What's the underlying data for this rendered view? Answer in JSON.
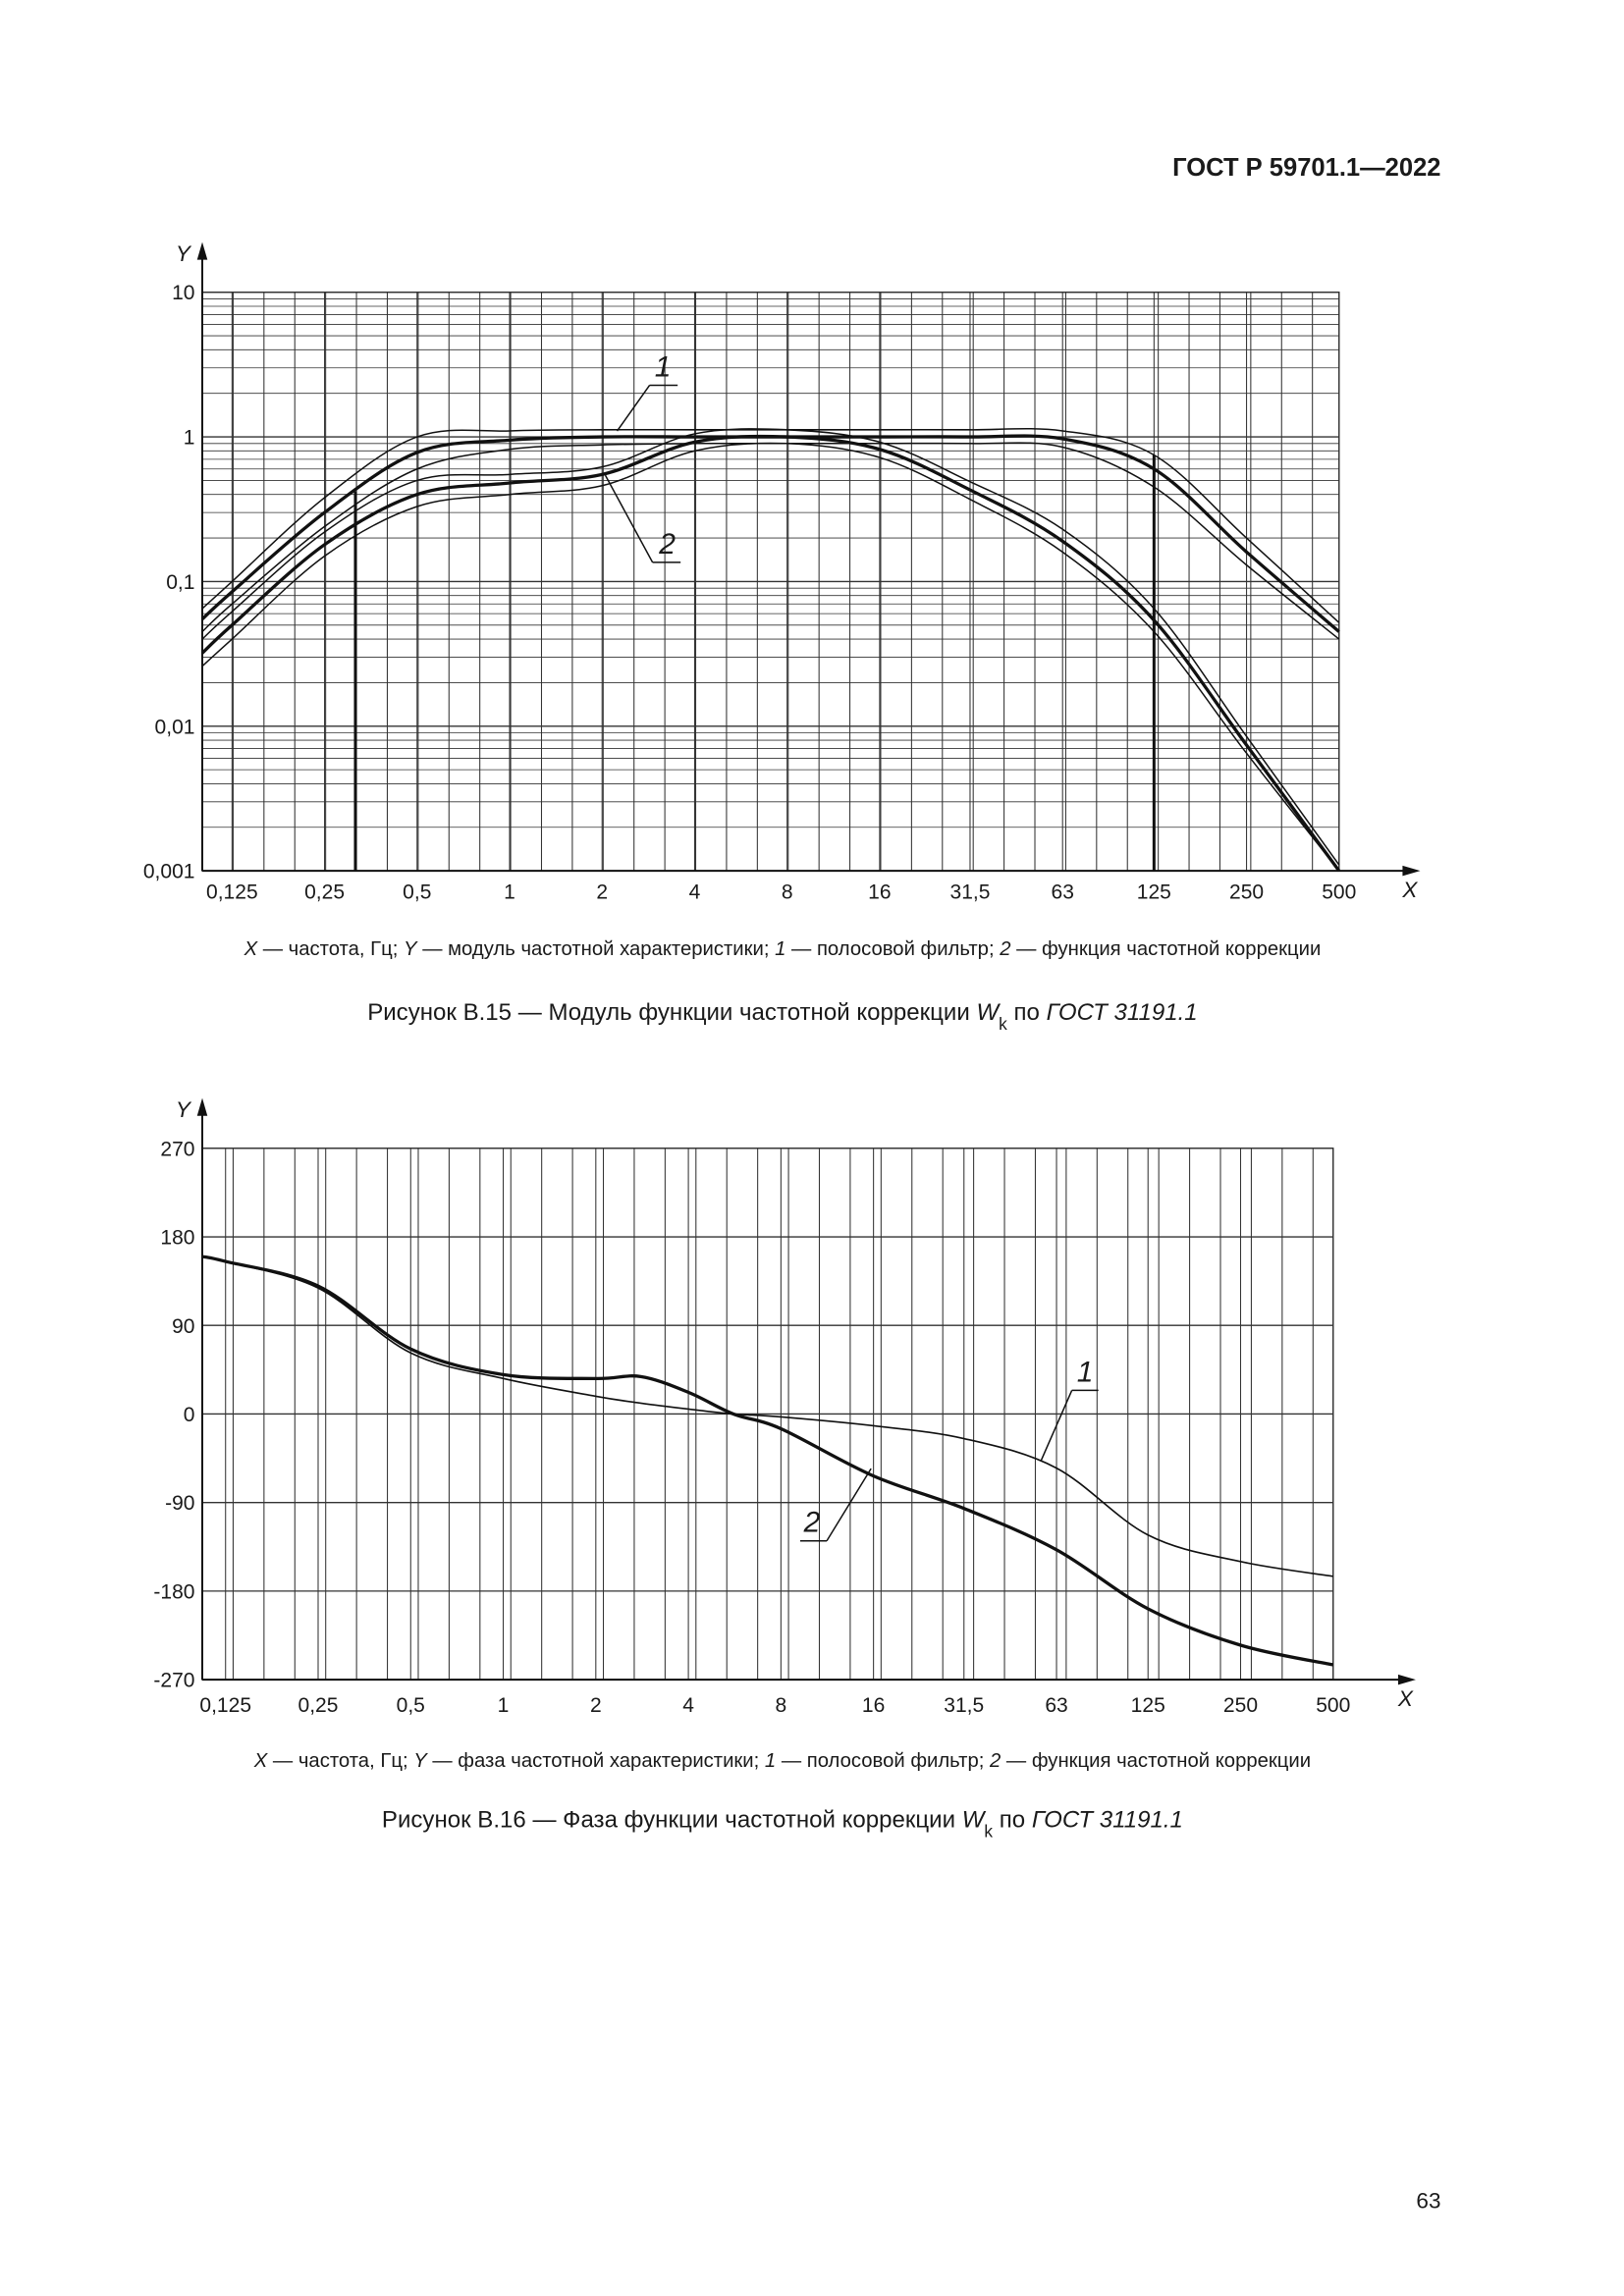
{
  "header": "ГОСТ Р 59701.1—2022",
  "page_number": "63",
  "chart_data": [
    {
      "type": "line",
      "xlog": true,
      "ylog": true,
      "xlim": [
        0.1,
        500
      ],
      "ylim": [
        0.001,
        10
      ],
      "xticks": [
        {
          "value": 0.125,
          "label": "0,125"
        },
        {
          "value": 0.25,
          "label": "0,25"
        },
        {
          "value": 0.5,
          "label": "0,5"
        },
        1,
        2,
        4,
        8,
        16,
        {
          "value": 31.5,
          "label": "31,5"
        },
        63,
        125,
        250,
        500
      ],
      "yticks": [
        {
          "value": 0.001,
          "label": "0,001"
        },
        {
          "value": 0.01,
          "label": "0,01"
        },
        {
          "value": 0.1,
          "label": "0,1"
        },
        1,
        10
      ],
      "grid": true,
      "minor_grid": true,
      "axis_labels": {
        "x": "X",
        "y": "Y"
      },
      "x": [
        0.1,
        0.125,
        0.25,
        0.5,
        1,
        2,
        4,
        8,
        16,
        31.5,
        63,
        125,
        250,
        500
      ],
      "series": [
        {
          "color": "#111111",
          "width": 1,
          "values": [
            0.065,
            0.1,
            0.38,
            1.0,
            1.1,
            1.12,
            1.12,
            1.12,
            1.12,
            1.12,
            1.1,
            0.75,
            0.2,
            0.052
          ]
        },
        {
          "color": "#111111",
          "width": 2.2,
          "values": [
            0.055,
            0.085,
            0.3,
            0.78,
            0.95,
            1.0,
            1.0,
            1.0,
            1.0,
            1.0,
            0.97,
            0.6,
            0.16,
            0.045
          ]
        },
        {
          "color": "#111111",
          "width": 1,
          "values": [
            0.045,
            0.07,
            0.24,
            0.6,
            0.82,
            0.88,
            0.9,
            0.9,
            0.9,
            0.9,
            0.85,
            0.45,
            0.13,
            0.04
          ]
        },
        {
          "color": "#111111",
          "width": 1,
          "values": [
            0.04,
            0.062,
            0.22,
            0.5,
            0.55,
            0.62,
            1.05,
            1.12,
            0.92,
            0.49,
            0.23,
            0.065,
            0.0085,
            0.0011
          ]
        },
        {
          "color": "#111111",
          "width": 2.2,
          "values": [
            0.032,
            0.05,
            0.18,
            0.4,
            0.48,
            0.55,
            0.92,
            1.0,
            0.82,
            0.43,
            0.19,
            0.054,
            0.0074,
            0.001
          ]
        },
        {
          "color": "#111111",
          "width": 1,
          "values": [
            0.026,
            0.04,
            0.15,
            0.33,
            0.4,
            0.46,
            0.8,
            0.9,
            0.72,
            0.37,
            0.16,
            0.045,
            0.0065,
            0.001
          ]
        }
      ],
      "vlines": [
        {
          "x": 0.315,
          "y": 0.42
        },
        {
          "x": 125,
          "y": 0.75
        }
      ],
      "annotations": [
        "1",
        "2"
      ],
      "note": [
        {
          "text": "X",
          "italic": true
        },
        {
          "text": " — частота, Гц; "
        },
        {
          "text": "Y",
          "italic": true
        },
        {
          "text": " — модуль частотной характеристики; "
        },
        {
          "text": "1",
          "italic": true
        },
        {
          "text": " — полосовой фильтр; "
        },
        {
          "text": "2",
          "italic": true
        },
        {
          "text": " — функция частотной коррекции"
        }
      ],
      "caption": [
        {
          "text": "Рисунок В.15 — Модуль функции частотной коррекции "
        },
        {
          "text": "W",
          "italic": true
        },
        {
          "text": "k",
          "sub": true
        },
        {
          "text": " по "
        },
        {
          "text": "ГОСТ 31191.1",
          "italic": true
        }
      ]
    },
    {
      "type": "line",
      "xlog": true,
      "ylog": false,
      "xlim": [
        0.105,
        500
      ],
      "ylim": [
        -270,
        270
      ],
      "xticks": [
        {
          "value": 0.125,
          "label": "0,125"
        },
        {
          "value": 0.25,
          "label": "0,25"
        },
        {
          "value": 0.5,
          "label": "0,5"
        },
        1,
        2,
        4,
        8,
        16,
        {
          "value": 31.5,
          "label": "31,5"
        },
        63,
        125,
        250,
        500
      ],
      "yticks": [
        -270,
        -180,
        -90,
        0,
        90,
        180,
        270
      ],
      "grid": true,
      "minor_grid": false,
      "axis_labels": {
        "x": "X",
        "y": "Y"
      },
      "x": [
        0.105,
        0.125,
        0.25,
        0.5,
        1,
        2,
        2.8,
        4,
        5.6,
        8,
        16,
        31.5,
        63,
        125,
        250,
        500
      ],
      "series": [
        {
          "color": "#111111",
          "width": 1.1,
          "values": [
            160,
            155,
            128,
            62,
            36,
            18,
            11,
            5,
            0,
            -3,
            -12,
            -25,
            -55,
            -123,
            -150,
            -165
          ]
        },
        {
          "color": "#111111",
          "width": 2.2,
          "values": [
            160,
            155,
            130,
            66,
            40,
            36,
            38,
            22,
            0,
            -15,
            -63,
            -96,
            -138,
            -198,
            -235,
            -255
          ]
        }
      ],
      "annotations": [
        "1",
        "2"
      ],
      "note": [
        {
          "text": "X",
          "italic": true
        },
        {
          "text": " — частота, Гц; "
        },
        {
          "text": "Y",
          "italic": true
        },
        {
          "text": " — фаза частотной характеристики; "
        },
        {
          "text": "1",
          "italic": true
        },
        {
          "text": " — полосовой фильтр; "
        },
        {
          "text": "2",
          "italic": true
        },
        {
          "text": " — функция частотной коррекции"
        }
      ],
      "caption": [
        {
          "text": "Рисунок В.16 — Фаза функции частотной коррекции "
        },
        {
          "text": "W",
          "italic": true
        },
        {
          "text": "k",
          "sub": true
        },
        {
          "text": " по "
        },
        {
          "text": "ГОСТ 31191.1",
          "italic": true
        }
      ]
    }
  ]
}
